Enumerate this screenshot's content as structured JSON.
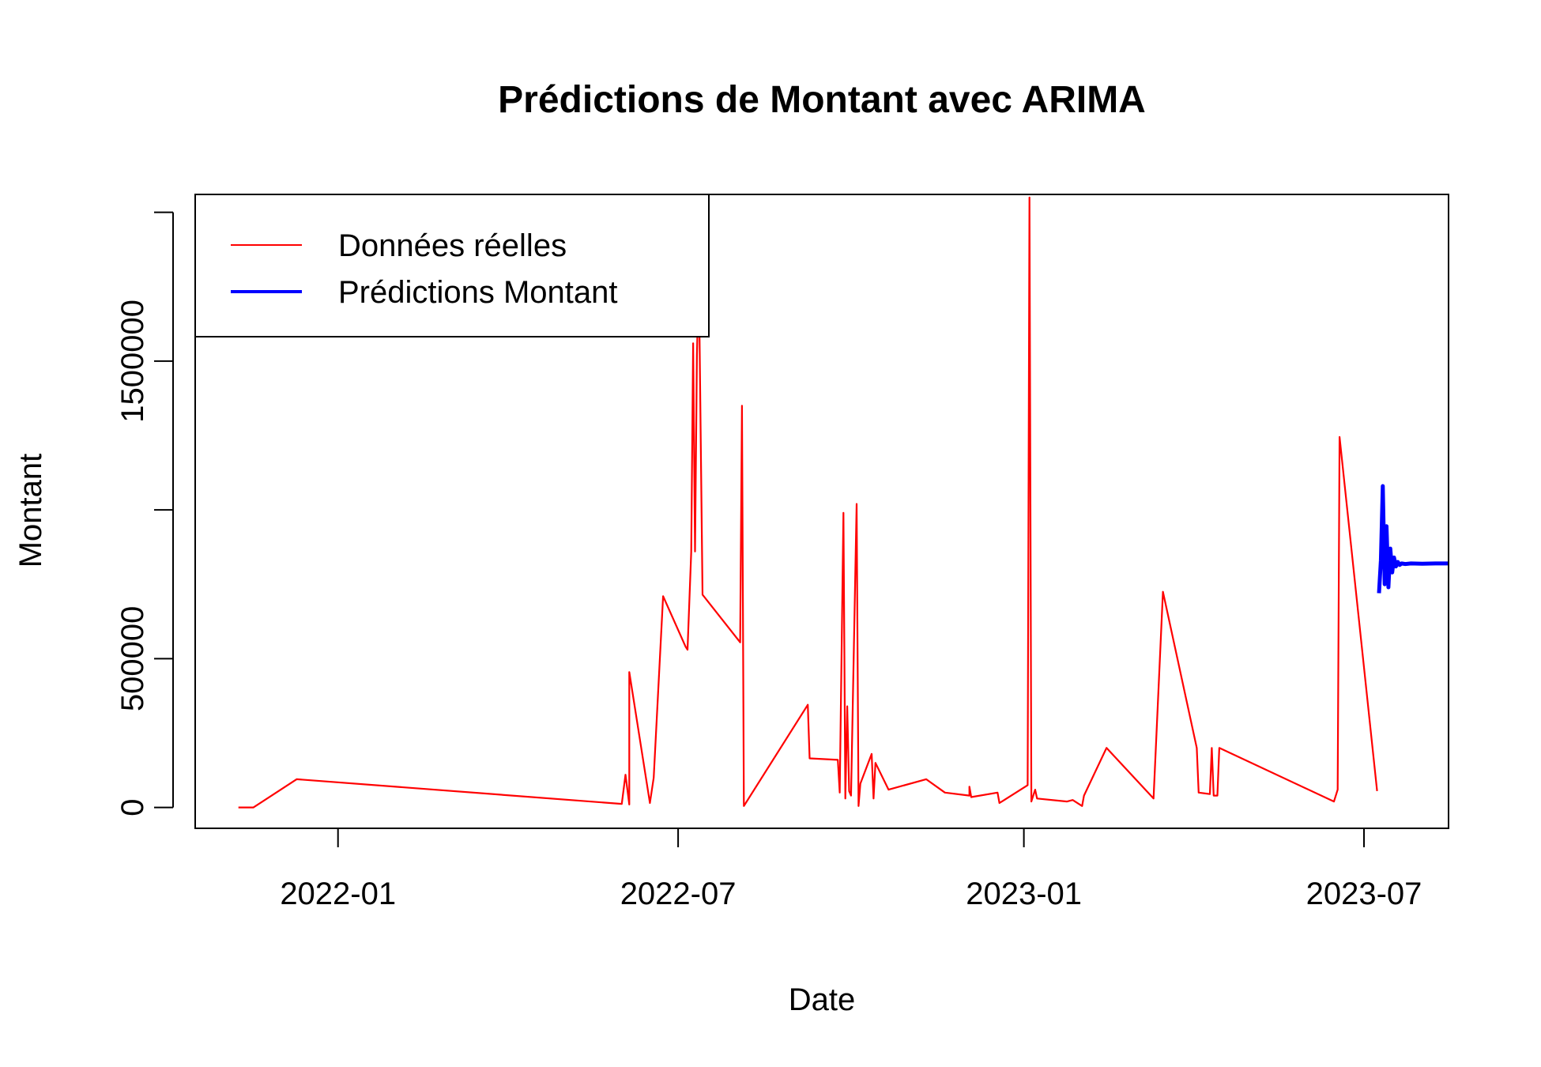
{
  "chart_data": {
    "type": "line",
    "title": "Prédictions de Montant avec ARIMA",
    "xlabel": "Date",
    "ylabel": "Montant",
    "xlim": [
      "2021-10-17",
      "2023-08-15"
    ],
    "ylim": [
      -70000,
      2060000
    ],
    "x_ticks": [
      {
        "date": "2022-01-01",
        "label": "2022-01"
      },
      {
        "date": "2022-07-01",
        "label": "2022-07"
      },
      {
        "date": "2023-01-01",
        "label": "2023-01"
      },
      {
        "date": "2023-07-01",
        "label": "2023-07"
      }
    ],
    "y_ticks": [
      {
        "value": 0,
        "label": "0"
      },
      {
        "value": 500000,
        "label": "500000"
      },
      {
        "value": 1000000,
        "label": ""
      },
      {
        "value": 1500000,
        "label": "1500000"
      },
      {
        "value": 2000000,
        "label": ""
      }
    ],
    "legend": {
      "position": "top-left",
      "entries": [
        {
          "label": "Données réelles",
          "color": "#ff0000"
        },
        {
          "label": "Prédictions Montant",
          "color": "#0000ff"
        }
      ]
    },
    "series": [
      {
        "name": "Données réelles",
        "color": "#ff0000",
        "points": [
          [
            "2021-11-09",
            0
          ],
          [
            "2021-11-17",
            0
          ],
          [
            "2021-12-10",
            95000
          ],
          [
            "2022-06-01",
            12000
          ],
          [
            "2022-06-03",
            110000
          ],
          [
            "2022-06-05",
            10000
          ],
          [
            "2022-06-05",
            455000
          ],
          [
            "2022-06-16",
            15000
          ],
          [
            "2022-06-18",
            100000
          ],
          [
            "2022-06-23",
            710000
          ],
          [
            "2022-07-05",
            540000
          ],
          [
            "2022-07-06",
            530000
          ],
          [
            "2022-07-08",
            860000
          ],
          [
            "2022-07-09",
            1560000
          ],
          [
            "2022-07-10",
            860000
          ],
          [
            "2022-07-11",
            1520000
          ],
          [
            "2022-07-12",
            1790000
          ],
          [
            "2022-07-14",
            715000
          ],
          [
            "2022-08-03",
            555000
          ],
          [
            "2022-08-04",
            1350000
          ],
          [
            "2022-08-05",
            5000
          ],
          [
            "2022-09-08",
            345000
          ],
          [
            "2022-09-09",
            165000
          ],
          [
            "2022-09-24",
            160000
          ],
          [
            "2022-09-25",
            50000
          ],
          [
            "2022-09-27",
            990000
          ],
          [
            "2022-09-28",
            30000
          ],
          [
            "2022-09-29",
            340000
          ],
          [
            "2022-09-30",
            55000
          ],
          [
            "2022-10-01",
            40000
          ],
          [
            "2022-10-04",
            1020000
          ],
          [
            "2022-10-05",
            5000
          ],
          [
            "2022-10-06",
            80000
          ],
          [
            "2022-10-12",
            180000
          ],
          [
            "2022-10-13",
            30000
          ],
          [
            "2022-10-14",
            150000
          ],
          [
            "2022-10-21",
            60000
          ],
          [
            "2022-11-10",
            95000
          ],
          [
            "2022-11-20",
            50000
          ],
          [
            "2022-12-03",
            40000
          ],
          [
            "2022-12-03",
            70000
          ],
          [
            "2022-12-04",
            35000
          ],
          [
            "2022-12-18",
            50000
          ],
          [
            "2022-12-19",
            15000
          ],
          [
            "2023-01-03",
            75000
          ],
          [
            "2023-01-04",
            2050000
          ],
          [
            "2023-01-05",
            20000
          ],
          [
            "2023-01-07",
            60000
          ],
          [
            "2023-01-08",
            30000
          ],
          [
            "2023-01-24",
            20000
          ],
          [
            "2023-01-27",
            25000
          ],
          [
            "2023-02-01",
            5000
          ],
          [
            "2023-02-02",
            40000
          ],
          [
            "2023-02-14",
            200000
          ],
          [
            "2023-03-11",
            30000
          ],
          [
            "2023-03-16",
            725000
          ],
          [
            "2023-04-03",
            200000
          ],
          [
            "2023-04-04",
            50000
          ],
          [
            "2023-04-10",
            45000
          ],
          [
            "2023-04-11",
            200000
          ],
          [
            "2023-04-12",
            40000
          ],
          [
            "2023-04-14",
            40000
          ],
          [
            "2023-04-15",
            200000
          ],
          [
            "2023-06-15",
            20000
          ],
          [
            "2023-06-17",
            60000
          ],
          [
            "2023-06-18",
            1245000
          ],
          [
            "2023-07-08",
            55000
          ]
        ]
      },
      {
        "name": "Prédictions Montant",
        "color": "#0000ff",
        "points": [
          [
            "2023-07-09",
            720000
          ],
          [
            "2023-07-10",
            830000
          ],
          [
            "2023-07-11",
            1080000
          ],
          [
            "2023-07-12",
            750000
          ],
          [
            "2023-07-13",
            945000
          ],
          [
            "2023-07-14",
            740000
          ],
          [
            "2023-07-15",
            870000
          ],
          [
            "2023-07-16",
            790000
          ],
          [
            "2023-07-17",
            840000
          ],
          [
            "2023-07-18",
            810000
          ],
          [
            "2023-07-19",
            825000
          ],
          [
            "2023-07-20",
            815000
          ],
          [
            "2023-07-21",
            820000
          ],
          [
            "2023-07-23",
            818000
          ],
          [
            "2023-07-26",
            820000
          ],
          [
            "2023-08-01",
            819000
          ],
          [
            "2023-08-08",
            820000
          ],
          [
            "2023-08-15",
            820000
          ]
        ]
      }
    ]
  }
}
